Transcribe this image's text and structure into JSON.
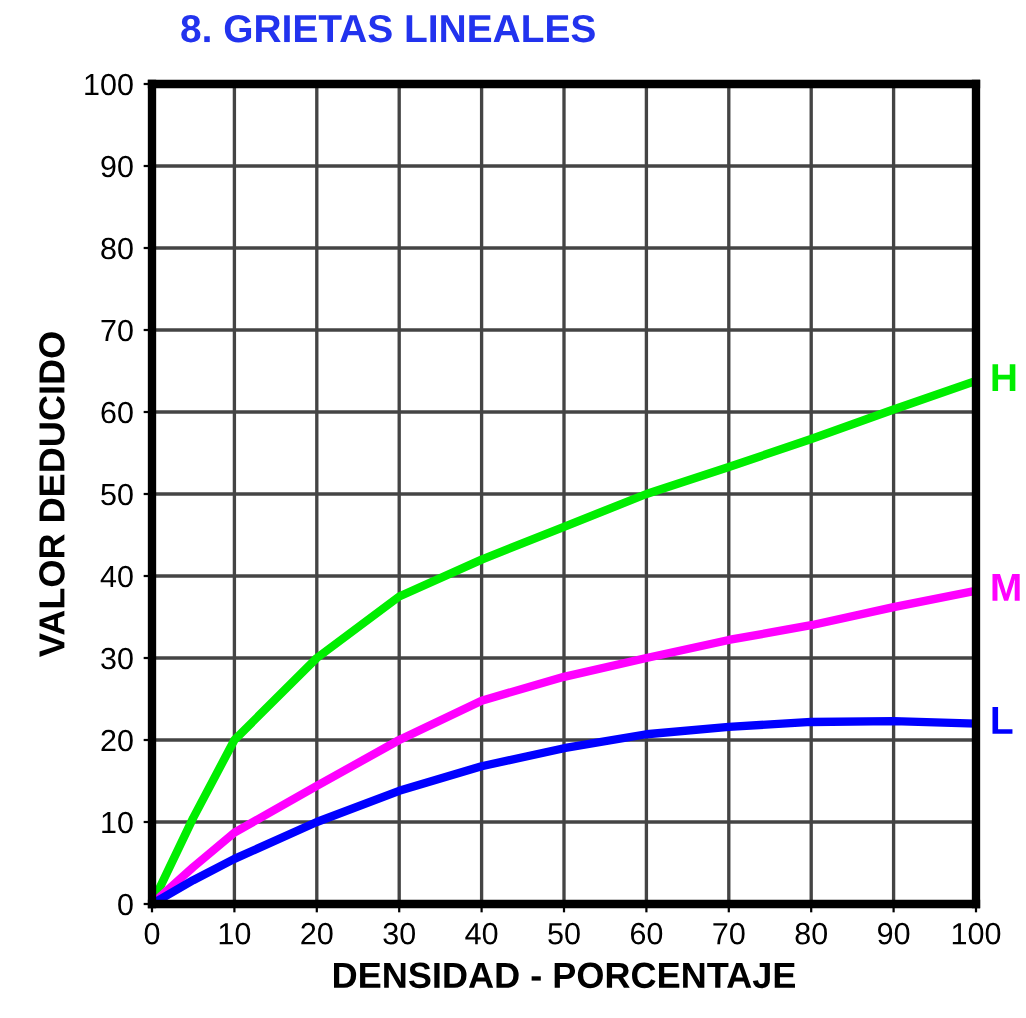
{
  "chart_data": {
    "type": "line",
    "title": "8. GRIETAS LINEALES",
    "xlabel": "DENSIDAD - PORCENTAJE",
    "ylabel": "VALOR DEDUCIDO",
    "x": [
      0,
      5,
      10,
      20,
      30,
      40,
      50,
      60,
      70,
      80,
      90,
      100
    ],
    "series": [
      {
        "name": "H",
        "color": "#00ee00",
        "values": [
          0,
          10.5,
          20,
          30,
          37.5,
          42,
          46,
          50,
          53.3,
          56.7,
          60.3,
          63.8
        ]
      },
      {
        "name": "M",
        "color": "#ff00ff",
        "values": [
          0,
          4.5,
          8.7,
          14.4,
          20,
          24.8,
          27.7,
          30,
          32.2,
          34,
          36.2,
          38.2
        ]
      },
      {
        "name": "L",
        "color": "#0000ff",
        "values": [
          0,
          2.9,
          5.5,
          10,
          13.8,
          16.8,
          19,
          20.7,
          21.6,
          22.2,
          22.3,
          22
        ]
      }
    ],
    "xlim": [
      0,
      100
    ],
    "ylim": [
      0,
      100
    ],
    "xticks": [
      0,
      10,
      20,
      30,
      40,
      50,
      60,
      70,
      80,
      90,
      100
    ],
    "yticks": [
      0,
      10,
      20,
      30,
      40,
      50,
      60,
      70,
      80,
      90,
      100
    ],
    "grid": true,
    "legend": false,
    "marker": "none",
    "line_style": "solid"
  }
}
